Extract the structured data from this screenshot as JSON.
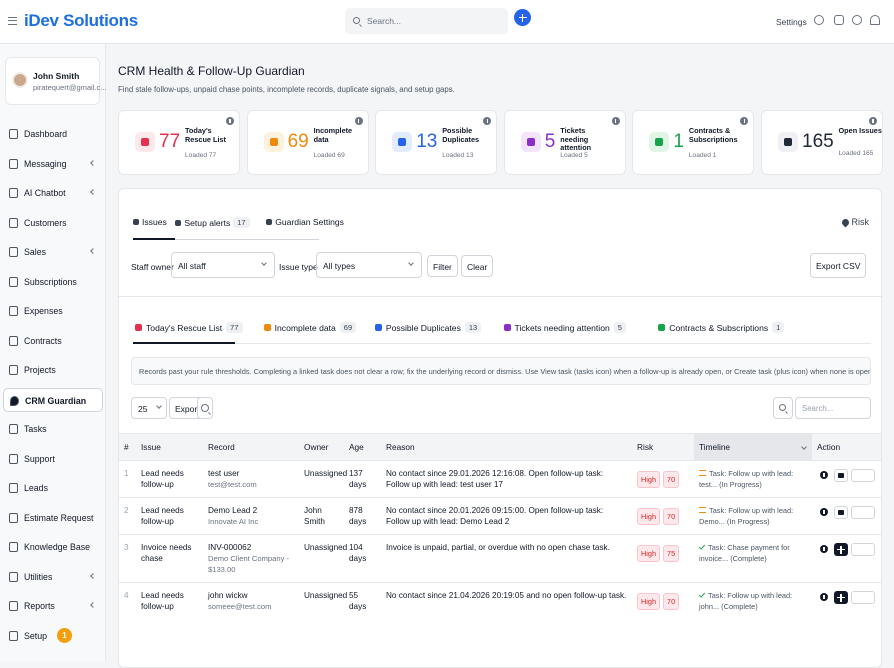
{
  "header": {
    "brand": "iDev Solutions",
    "search_placeholder": "Search...",
    "settings": "Settings"
  },
  "sidebar": {
    "user": {
      "name": "John Smith",
      "email": "piratequert@gmail.c..."
    },
    "active": 9,
    "items": [
      {
        "label": "Dashboard"
      },
      {
        "label": "Messaging",
        "submenu": true
      },
      {
        "label": "AI Chatbot",
        "submenu": true
      },
      {
        "label": "Customers"
      },
      {
        "label": "Sales",
        "submenu": true
      },
      {
        "label": "Subscriptions"
      },
      {
        "label": "Expenses"
      },
      {
        "label": "Contracts"
      },
      {
        "label": "Projects"
      },
      {
        "label": "CRM Guardian"
      },
      {
        "label": "Tasks"
      },
      {
        "label": "Support"
      },
      {
        "label": "Leads"
      },
      {
        "label": "Estimate Request"
      },
      {
        "label": "Knowledge Base"
      },
      {
        "label": "Utilities",
        "submenu": true
      },
      {
        "label": "Reports",
        "submenu": true
      },
      {
        "label": "Setup",
        "badge": "1"
      }
    ]
  },
  "page": {
    "title": "CRM Health & Follow-Up Guardian",
    "subtitle": "Find stale follow-ups, unpaid chase points, incomplete records, duplicate signals, and setup gaps."
  },
  "stats": [
    {
      "value": "77",
      "label": "Today's Rescue List",
      "sub": "Loaded 77",
      "color": "#e5304f",
      "tint": "#fde8ec"
    },
    {
      "value": "69",
      "label": "Incomplete data",
      "sub": "Loaded 69",
      "color": "#ef8a0c",
      "tint": "#fef1de"
    },
    {
      "value": "13",
      "label": "Possible Duplicates",
      "sub": "Loaded 13",
      "color": "#2563eb",
      "tint": "#e3ecfd"
    },
    {
      "value": "5",
      "label": "Tickets needing attention",
      "sub": "Loaded 5",
      "color": "#8b2fc9",
      "tint": "#f1e4fb"
    },
    {
      "value": "1",
      "label": "Contracts & Subscriptions",
      "sub": "Loaded 1",
      "color": "#16a34a",
      "tint": "#e1f5e7"
    },
    {
      "value": "165",
      "label": "Open Issues",
      "sub": "Loaded 165",
      "color": "#1f2937",
      "tint": "#eef0f3"
    }
  ],
  "tabs": [
    {
      "label": "Issues"
    },
    {
      "label": "Setup alerts",
      "count": "17"
    },
    {
      "label": "Guardian Settings"
    }
  ],
  "risk_link": "Risk",
  "filters": {
    "staff_label": "Staff owner",
    "staff_value": "All staff",
    "type_label": "Issue type",
    "type_value": "All types",
    "filter": "Filter",
    "clear": "Clear",
    "export": "Export CSV"
  },
  "subtabs": [
    {
      "label": "Today's Rescue List",
      "count": "77",
      "color": "#e5304f"
    },
    {
      "label": "Incomplete data",
      "count": "69",
      "color": "#ef8a0c"
    },
    {
      "label": "Possible Duplicates",
      "count": "13",
      "color": "#2563eb"
    },
    {
      "label": "Tickets needing attention",
      "count": "5",
      "color": "#8b2fc9"
    },
    {
      "label": "Contracts & Subscriptions",
      "count": "1",
      "color": "#16a34a"
    }
  ],
  "notice": "Records past your rule thresholds. Completing a linked task does not clear a row; fix the underlying record or dismiss. Use View task (tasks icon) when a follow-up is already open, or Create task (plus icon) when none is open.",
  "controls": {
    "page_size": "25",
    "export": "Export",
    "search_placeholder": "Search..."
  },
  "table": {
    "columns": [
      "#",
      "Issue",
      "Record",
      "Owner",
      "Age",
      "Reason",
      "Risk",
      "Timeline",
      "Action"
    ],
    "rows": [
      {
        "num": "1",
        "issue": "Lead needs follow-up",
        "record": "test user",
        "record_sub": "test@test.com",
        "owner": "Unassigned",
        "age": "137 days",
        "reason": "No contact since 29.01.2026 12:16:08. Open follow-up task: Follow up with lead: test user 17",
        "risk": "High",
        "score": "70",
        "timeline": "Task: Follow up with lead: test... (In Progress)",
        "status": "progress",
        "action": "view"
      },
      {
        "num": "2",
        "issue": "Lead needs follow-up",
        "record": "Demo Lead 2",
        "record_sub": "Innovate AI Inc",
        "owner": "John Smith",
        "age": "878 days",
        "reason": "No contact since 20.01.2026 09:15:00. Open follow-up task: Follow up with lead: Demo Lead 2",
        "risk": "High",
        "score": "70",
        "timeline": "Task: Follow up with lead: Demo... (In Progress)",
        "status": "progress",
        "action": "view"
      },
      {
        "num": "3",
        "issue": "Invoice needs chase",
        "record": "INV-000062",
        "record_sub": "Demo Client Company - $133.00",
        "owner": "Unassigned",
        "age": "104 days",
        "reason": "Invoice is unpaid, partial, or overdue with no open chase task.",
        "risk": "High",
        "score": "75",
        "timeline": "Task: Chase payment for invoice... (Complete)",
        "status": "complete",
        "action": "create"
      },
      {
        "num": "4",
        "issue": "Lead needs follow-up",
        "record": "john wickw",
        "record_sub": "someee@test.com",
        "owner": "Unassigned",
        "age": "55 days",
        "reason": "No contact since 21.04.2026 20:19:05 and no open follow-up task.",
        "risk": "High",
        "score": "70",
        "timeline": "Task: Follow up with lead: john... (Complete)",
        "status": "complete",
        "action": "create"
      }
    ]
  }
}
